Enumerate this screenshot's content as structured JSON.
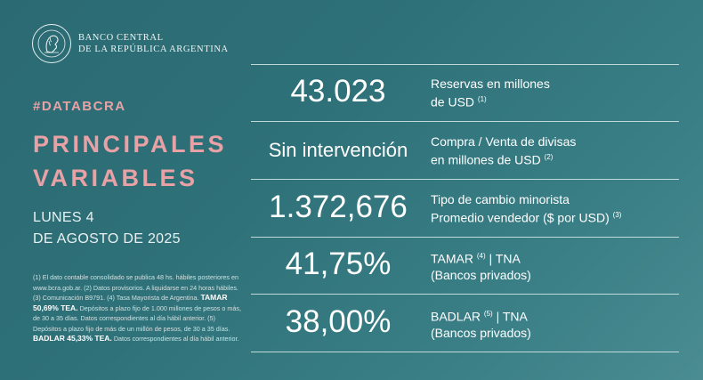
{
  "header": {
    "bank_line1": "BANCO CENTRAL",
    "bank_line2": "DE LA REPÚBLICA ARGENTINA"
  },
  "hashtag": "#DATABCRA",
  "title": {
    "line1": "PRINCIPALES",
    "line2": "VARIABLES"
  },
  "date": {
    "line1": "LUNES 4",
    "line2": "DE AGOSTO DE 2025"
  },
  "notes": {
    "part1": "(1) El dato contable consolidado se publica 48 hs. hábiles posteriores en www.bcra.gob.ar. (2) Datos provisorios. A liquidarse en 24 horas hábiles. (3) Comunicación B9791. (4) Tasa Mayorista de Argentina.",
    "tamar_bold": "TAMAR 50,69% TEA.",
    "part2": "Depósitos a plazo fijo de 1.000 millones de pesos o más, de 30 a 35 días. Datos correspondientes al día hábil anterior. (5) Depósitos a plazo fijo de más de un millón de pesos, de 30 a 35 días.",
    "badlar_bold": "BADLAR 45,33% TEA.",
    "part3": "Datos correspondientes al día hábil anterior."
  },
  "rows": [
    {
      "value": "43.023",
      "label1": "Reservas en millones",
      "label2": "de USD",
      "note": "(1)"
    },
    {
      "value": "Sin intervención",
      "label1": "Compra / Venta de divisas",
      "label2": "en millones de USD",
      "note": "(2)"
    },
    {
      "value": "1.372,676",
      "label1": "Tipo de cambio minorista",
      "label2": "Promedio vendedor ($ por USD)",
      "note": "(3)"
    },
    {
      "value": "41,75%",
      "label1a": "TAMAR",
      "note": "(4)",
      "label1b": "| TNA",
      "label2": "(Bancos privados)"
    },
    {
      "value": "38,00%",
      "label1a": "BADLAR",
      "note": "(5)",
      "label1b": "| TNA",
      "label2": "(Bancos privados)"
    }
  ]
}
